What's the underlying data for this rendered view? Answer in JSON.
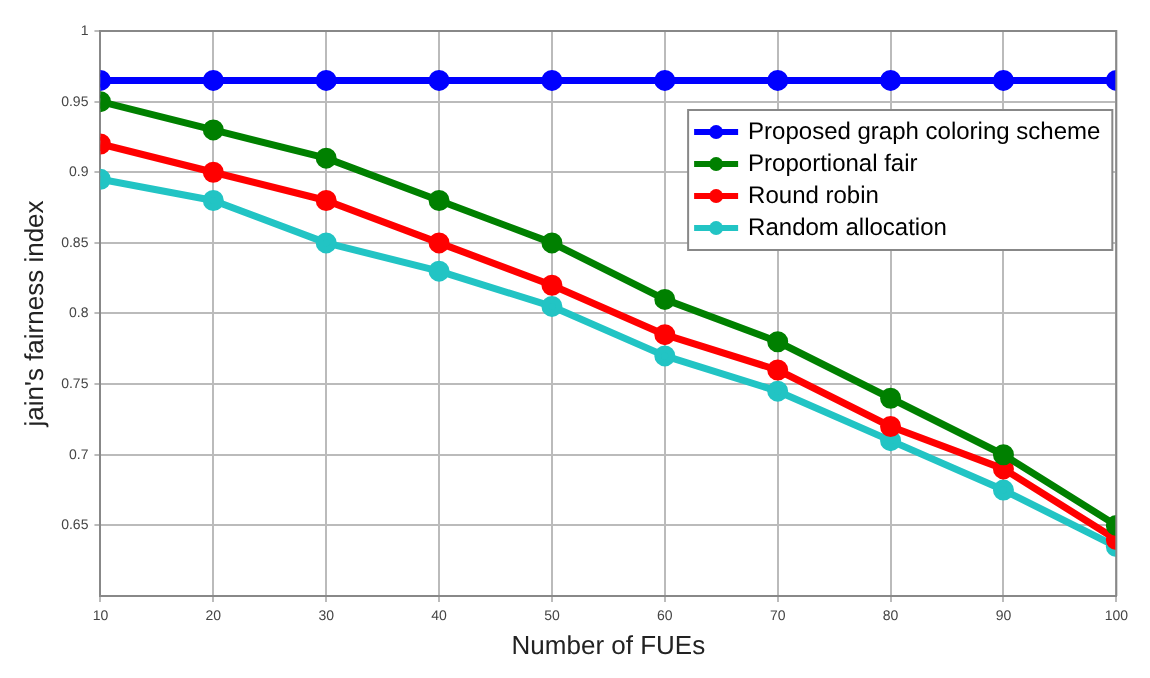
{
  "chart_data": {
    "type": "line",
    "xlabel": "Number of FUEs",
    "ylabel": "jain's fairness index",
    "x": [
      10,
      20,
      30,
      40,
      50,
      60,
      70,
      80,
      90,
      100
    ],
    "xlim": [
      10,
      100
    ],
    "xticks": [
      10,
      20,
      30,
      40,
      50,
      60,
      70,
      80,
      90,
      100
    ],
    "ylim": [
      0.6,
      1
    ],
    "yticks": [
      0.65,
      0.7,
      0.75,
      0.8,
      0.85,
      0.9,
      0.95,
      1
    ],
    "grid": true,
    "legend": "top right",
    "marker": "circle",
    "line_style": "solid",
    "series": [
      {
        "name": "Proposed graph coloring scheme",
        "color": "#0000ff",
        "values": [
          0.965,
          0.965,
          0.965,
          0.965,
          0.965,
          0.965,
          0.965,
          0.965,
          0.965,
          0.965
        ]
      },
      {
        "name": "Proportional fair",
        "color": "#008000",
        "values": [
          0.95,
          0.93,
          0.91,
          0.88,
          0.85,
          0.81,
          0.78,
          0.74,
          0.7,
          0.65
        ]
      },
      {
        "name": "Round robin",
        "color": "#ff0000",
        "values": [
          0.92,
          0.9,
          0.88,
          0.85,
          0.82,
          0.785,
          0.76,
          0.72,
          0.69,
          0.64
        ]
      },
      {
        "name": "Random allocation",
        "color": "#22c4c4",
        "values": [
          0.895,
          0.88,
          0.85,
          0.83,
          0.805,
          0.77,
          0.745,
          0.71,
          0.675,
          0.635
        ]
      }
    ]
  }
}
